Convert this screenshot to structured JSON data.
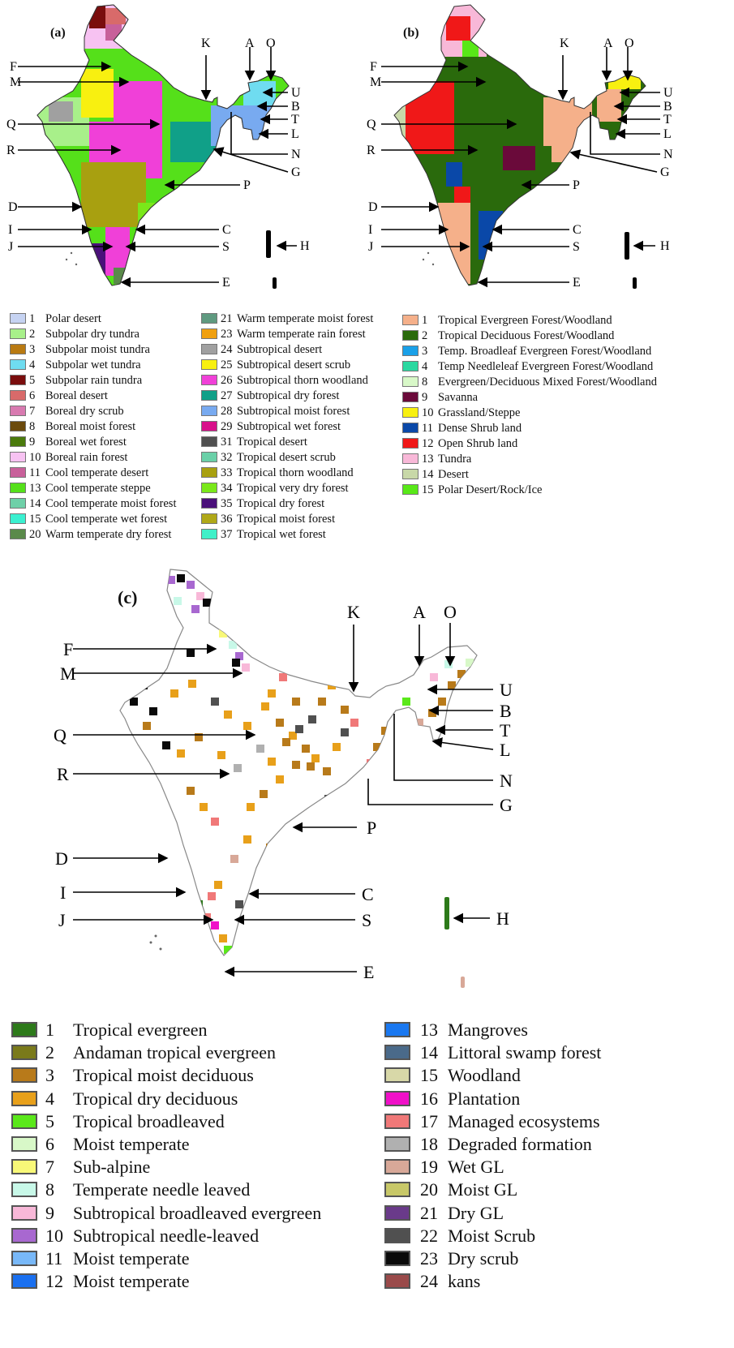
{
  "maps": {
    "a": {
      "panel_label": "(a)"
    },
    "b": {
      "panel_label": "(b)"
    },
    "c": {
      "panel_label": "(c)"
    }
  },
  "arrow_labels_right": [
    "K",
    "A",
    "O",
    "U",
    "B",
    "T",
    "L",
    "N",
    "G",
    "P",
    "C",
    "S",
    "E",
    "H"
  ],
  "arrow_labels_left": [
    "F",
    "M",
    "Q",
    "R",
    "D",
    "I",
    "J"
  ],
  "legend_a_col1": [
    {
      "num": "1",
      "label": "Polar desert",
      "color": "#c6d3f2"
    },
    {
      "num": "2",
      "label": "Subpolar dry tundra",
      "color": "#a8f08a"
    },
    {
      "num": "3",
      "label": "Subpolar moist tundra",
      "color": "#b97a12"
    },
    {
      "num": "4",
      "label": "Subpolar wet tundra",
      "color": "#6fdcf0"
    },
    {
      "num": "5",
      "label": "Subpolar rain tundra",
      "color": "#7a0d0d"
    },
    {
      "num": "6",
      "label": "Boreal desert",
      "color": "#d86a6a"
    },
    {
      "num": "7",
      "label": "Boreal dry scrub",
      "color": "#d87ab0"
    },
    {
      "num": "8",
      "label": "Boreal moist forest",
      "color": "#6b4a0c"
    },
    {
      "num": "9",
      "label": "Boreal wet forest",
      "color": "#4a7a0c"
    },
    {
      "num": "10",
      "label": "Boreal rain forest",
      "color": "#f7c2f2"
    },
    {
      "num": "11",
      "label": "Cool temperate desert",
      "color": "#c8609a"
    },
    {
      "num": "13",
      "label": "Cool temperate steppe",
      "color": "#55e01a"
    },
    {
      "num": "14",
      "label": "Cool temperate moist forest",
      "color": "#6ed0a8"
    },
    {
      "num": "15",
      "label": "Cool temperate wet forest",
      "color": "#3af0d0"
    },
    {
      "num": "20",
      "label": "Warm temperate dry forest",
      "color": "#5a8a4a"
    }
  ],
  "legend_a_col2": [
    {
      "num": "21",
      "label": "Warm temperate moist forest",
      "color": "#5f9a80"
    },
    {
      "num": "23",
      "label": "Warm temperate rain forest",
      "color": "#f0a010"
    },
    {
      "num": "24",
      "label": "Subtropical desert",
      "color": "#a0a0a0"
    },
    {
      "num": "25",
      "label": "Subtropical desert scrub",
      "color": "#f8f010"
    },
    {
      "num": "26",
      "label": "Subtropical thorn woodland",
      "color": "#f040d8"
    },
    {
      "num": "27",
      "label": "Subtropical dry forest",
      "color": "#10a088"
    },
    {
      "num": "28",
      "label": "Subtropical moist forest",
      "color": "#78aaf0"
    },
    {
      "num": "29",
      "label": "Subtropical wet forest",
      "color": "#d8108a"
    },
    {
      "num": "31",
      "label": "Tropical desert",
      "color": "#505050"
    },
    {
      "num": "32",
      "label": "Tropical desert scrub",
      "color": "#6ad0a8"
    },
    {
      "num": "33",
      "label": "Tropical thorn woodland",
      "color": "#a8a010"
    },
    {
      "num": "34",
      "label": "Tropical very dry forest",
      "color": "#7ae81a"
    },
    {
      "num": "35",
      "label": "Tropical dry forest",
      "color": "#4a107a"
    },
    {
      "num": "36",
      "label": "Tropical moist forest",
      "color": "#b0a818"
    },
    {
      "num": "37",
      "label": "Tropical wet forest",
      "color": "#40f0c8"
    }
  ],
  "legend_b": [
    {
      "num": "1",
      "label": "Tropical Evergreen Forest/Woodland",
      "color": "#f5b08a"
    },
    {
      "num": "2",
      "label": "Tropical Deciduous Forest/Woodland",
      "color": "#2a6a0c"
    },
    {
      "num": "3",
      "label": "Temp. Broadleaf Evergreen Forest/Woodland",
      "color": "#1aa0e8"
    },
    {
      "num": "4",
      "label": "Temp Needleleaf Evergreen Forest/Woodland",
      "color": "#2ad8a0"
    },
    {
      "num": "8",
      "label": "Evergreen/Deciduous Mixed Forest/Woodland",
      "color": "#d8f8c8"
    },
    {
      "num": "9",
      "label": "Savanna",
      "color": "#6a0a3a"
    },
    {
      "num": "10",
      "label": "Grassland/Steppe",
      "color": "#f8f010"
    },
    {
      "num": "11",
      "label": "Dense Shrub land",
      "color": "#0a48a8"
    },
    {
      "num": "12",
      "label": "Open Shrub land",
      "color": "#f01818"
    },
    {
      "num": "13",
      "label": "Tundra",
      "color": "#f8b8d8"
    },
    {
      "num": "14",
      "label": "Desert",
      "color": "#c8d8a8"
    },
    {
      "num": "15",
      "label": "Polar Desert/Rock/Ice",
      "color": "#58e818"
    }
  ],
  "legend_c_left": [
    {
      "num": "1",
      "label": "Tropical evergreen",
      "color": "#2d7a1a"
    },
    {
      "num": "2",
      "label": "Andaman tropical evergreen",
      "color": "#7a7a1a"
    },
    {
      "num": "3",
      "label": "Tropical moist deciduous",
      "color": "#b87a1a"
    },
    {
      "num": "4",
      "label": "Tropical dry deciduous",
      "color": "#e8a01a"
    },
    {
      "num": "5",
      "label": "Tropical broadleaved",
      "color": "#5ae81a"
    },
    {
      "num": "6",
      "label": "Moist temperate",
      "color": "#d8f8c8"
    },
    {
      "num": "7",
      "label": "Sub-alpine",
      "color": "#f8f878"
    },
    {
      "num": "8",
      "label": "Temperate needle leaved",
      "color": "#c8f8e8"
    },
    {
      "num": "9",
      "label": "Subtropical broadleaved evergreen",
      "color": "#f8b8d8"
    },
    {
      "num": "10",
      "label": "Subtropical needle-leaved",
      "color": "#a868d0"
    },
    {
      "num": "11",
      "label": "Moist temperate",
      "color": "#78b8f8"
    },
    {
      "num": "12",
      "label": "",
      "color": "#1a70f0"
    }
  ],
  "legend_c_right": [
    {
      "num": "13",
      "label": "Mangroves",
      "color": "#1a78f0"
    },
    {
      "num": "14",
      "label": "Littoral swamp forest",
      "color": "#4a6a8a"
    },
    {
      "num": "15",
      "label": "Woodland",
      "color": "#d8d8a8"
    },
    {
      "num": "16",
      "label": "Plantation",
      "color": "#f010c8"
    },
    {
      "num": "17",
      "label": "Managed  ecosystems",
      "color": "#f07878"
    },
    {
      "num": "18",
      "label": "Degraded formation",
      "color": "#b0b0b0"
    },
    {
      "num": "19",
      "label": "Wet GL",
      "color": "#d8a898"
    },
    {
      "num": "20",
      "label": "Moist GL",
      "color": "#c8c868"
    },
    {
      "num": "21",
      "label": "Dry GL",
      "color": "#6a3a8a"
    },
    {
      "num": "22",
      "label": "Moist Scrub",
      "color": "#505050"
    },
    {
      "num": "23",
      "label": "Dry scrub",
      "color": "#0a0a0a"
    },
    {
      "num": "24",
      "label": "kans",
      "color": "#9a4a4a"
    }
  ]
}
